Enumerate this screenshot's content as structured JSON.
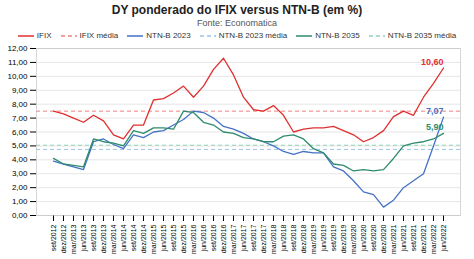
{
  "chart_data": {
    "type": "line",
    "title": "DY ponderado do IFIX versus NTN-B (em %)",
    "subtitle": "Fonte: Economatica",
    "categories": [
      "set/2012",
      "dez/2012",
      "mar/2013",
      "jun/2013",
      "set/2013",
      "dez/2013",
      "mar/2014",
      "jun/2014",
      "set/2014",
      "dez/2014",
      "mar/2015",
      "jun/2015",
      "set/2015",
      "dez/2015",
      "mar/2016",
      "jun/2016",
      "set/2016",
      "dez/2016",
      "mar/2017",
      "jun/2017",
      "set/2017",
      "dez/2017",
      "mar/2018",
      "jun/2018",
      "set/2018",
      "dez/2018",
      "mar/2019",
      "jun/2019",
      "set/2019",
      "dez/2019",
      "mar/2020",
      "jun/2020",
      "set/2020",
      "dez/2020",
      "mar/2021",
      "jun/2021",
      "set/2021",
      "dez/2021",
      "mar/2022",
      "jun/2022"
    ],
    "series": [
      {
        "name": "IFIX",
        "color": "#e03030",
        "type": "line",
        "line_style": "solid",
        "values": [
          7.5,
          7.3,
          7.0,
          6.7,
          7.2,
          6.8,
          5.8,
          5.5,
          6.5,
          6.5,
          8.3,
          8.4,
          8.8,
          9.3,
          8.5,
          9.3,
          10.5,
          11.3,
          10.1,
          8.5,
          7.6,
          7.5,
          7.9,
          7.2,
          6.0,
          6.2,
          6.3,
          6.3,
          6.4,
          6.1,
          5.8,
          5.3,
          5.6,
          6.1,
          7.1,
          7.5,
          7.2,
          8.5,
          9.5,
          10.6
        ]
      },
      {
        "name": "IFIX média",
        "color": "#f08080",
        "type": "hline",
        "line_style": "dashed",
        "value": 7.5
      },
      {
        "name": "NTN-B 2023",
        "color": "#4472c4",
        "type": "line",
        "line_style": "solid",
        "values": [
          3.9,
          3.7,
          3.5,
          3.3,
          5.3,
          5.5,
          5.1,
          4.8,
          5.8,
          5.6,
          6.0,
          6.1,
          6.5,
          6.9,
          7.5,
          7.4,
          7.0,
          6.4,
          6.2,
          5.9,
          5.5,
          5.3,
          5.0,
          4.6,
          4.4,
          4.6,
          4.5,
          4.5,
          3.5,
          3.2,
          2.5,
          1.7,
          1.5,
          0.6,
          1.1,
          2.0,
          2.5,
          3.0,
          5.0,
          7.07
        ]
      },
      {
        "name": "NTN-B 2023 média",
        "color": "#9dc3e6",
        "type": "hline",
        "line_style": "dashed",
        "value": 4.75
      },
      {
        "name": "NTN-B 2035",
        "color": "#2e8b6e",
        "type": "line",
        "line_style": "solid",
        "values": [
          4.1,
          3.7,
          3.6,
          3.5,
          5.5,
          5.3,
          5.2,
          5.0,
          6.1,
          5.9,
          6.3,
          6.3,
          6.2,
          7.5,
          7.4,
          6.7,
          6.5,
          6.0,
          5.9,
          5.6,
          5.5,
          5.3,
          5.3,
          5.7,
          5.8,
          5.5,
          4.8,
          4.5,
          3.7,
          3.6,
          3.2,
          3.3,
          3.2,
          3.3,
          4.1,
          5.0,
          5.2,
          5.3,
          5.5,
          5.9
        ]
      },
      {
        "name": "NTN-B 2035 média",
        "color": "#90d4b8",
        "type": "hline",
        "line_style": "dashed",
        "value": 5.05
      }
    ],
    "annotations": [
      {
        "text": "10,60",
        "x": "jun/2022",
        "y": 10.6,
        "color": "#e03030"
      },
      {
        "text": "7,07",
        "x": "jun/2022",
        "y": 7.07,
        "color": "#4472c4"
      },
      {
        "text": "5,90",
        "x": "jun/2022",
        "y": 5.9,
        "color": "#2e8b6e"
      }
    ],
    "ylim": [
      0,
      12
    ],
    "yticks": [
      {
        "value": 0,
        "label": "0,00"
      },
      {
        "value": 1,
        "label": "1,00"
      },
      {
        "value": 2,
        "label": "2,00"
      },
      {
        "value": 3,
        "label": "3,00"
      },
      {
        "value": 4,
        "label": "4,00"
      },
      {
        "value": 5,
        "label": "5,00"
      },
      {
        "value": 6,
        "label": "6,00"
      },
      {
        "value": 7,
        "label": "7,00"
      },
      {
        "value": 8,
        "label": "8,00"
      },
      {
        "value": 9,
        "label": "9,00"
      },
      {
        "value": 10,
        "label": "10,00"
      },
      {
        "value": 11,
        "label": "11,00"
      },
      {
        "value": 12,
        "label": "12,00"
      }
    ],
    "grid": true,
    "legend": "top"
  }
}
